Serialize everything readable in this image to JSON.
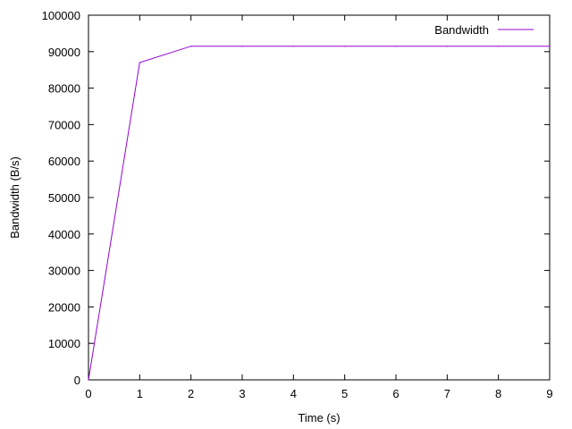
{
  "chart_data": {
    "type": "line",
    "title": "",
    "xlabel": "Time (s)",
    "ylabel": "Bandwidth (B/s)",
    "xlim": [
      0,
      9
    ],
    "ylim": [
      0,
      100000
    ],
    "x_ticks": [
      0,
      1,
      2,
      3,
      4,
      5,
      6,
      7,
      8,
      9
    ],
    "y_ticks": [
      0,
      10000,
      20000,
      30000,
      40000,
      50000,
      60000,
      70000,
      80000,
      90000,
      100000
    ],
    "x_tick_labels": [
      "0",
      "1",
      "2",
      "3",
      "4",
      "5",
      "6",
      "7",
      "8",
      "9"
    ],
    "y_tick_labels": [
      "0",
      "10000",
      "20000",
      "30000",
      "40000",
      "50000",
      "60000",
      "70000",
      "80000",
      "90000",
      "100000"
    ],
    "grid": false,
    "legend_position": "top-right",
    "series": [
      {
        "name": "Bandwidth",
        "color": "#9400d3",
        "x": [
          0,
          1,
          2,
          3,
          4,
          5,
          6,
          7,
          8,
          9
        ],
        "y": [
          0,
          87000,
          91500,
          91500,
          91500,
          91500,
          91500,
          91500,
          91500,
          91500
        ]
      }
    ]
  }
}
